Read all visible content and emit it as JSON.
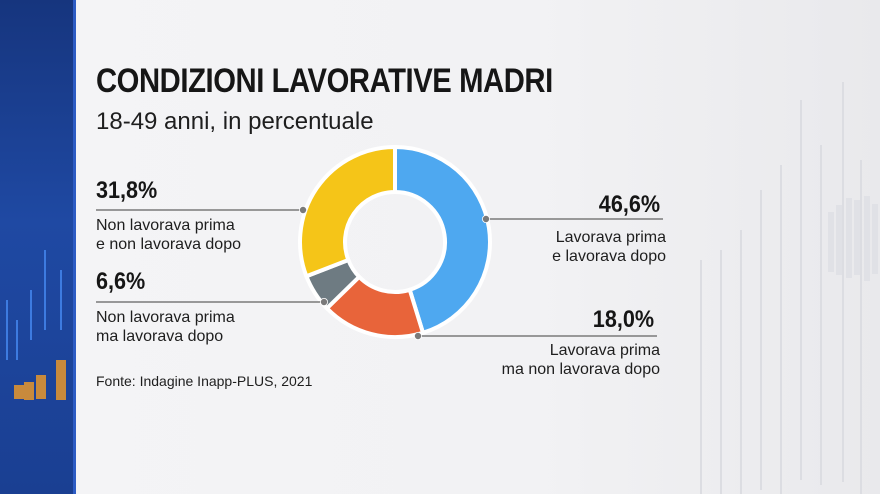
{
  "header": {
    "title": "CONDIZIONI LAVORATIVE MADRI",
    "subtitle": "18-49 anni, in percentuale"
  },
  "source": "Fonte: Indagine Inapp-PLUS, 2021",
  "chart_data": {
    "type": "pie",
    "donut": true,
    "title": "CONDIZIONI LAVORATIVE MADRI",
    "subtitle": "18-49 anni, in percentuale",
    "slices": [
      {
        "value_label": "46,6%",
        "value": 46.6,
        "line1": "Lavorava prima",
        "line2": "e lavorava dopo",
        "color": "#4ea8f0"
      },
      {
        "value_label": "18,0%",
        "value": 18.0,
        "line1": "Lavorava prima",
        "line2": "ma non lavorava dopo",
        "color": "#e8643a"
      },
      {
        "value_label": "6,6%",
        "value": 6.6,
        "line1": "Non lavorava prima",
        "line2": "ma lavorava dopo",
        "color": "#6e7b82"
      },
      {
        "value_label": "31,8%",
        "value": 31.8,
        "line1": "Non lavorava prima",
        "line2": "e non lavorava dopo",
        "color": "#f5c518"
      }
    ],
    "legend": "callouts"
  }
}
